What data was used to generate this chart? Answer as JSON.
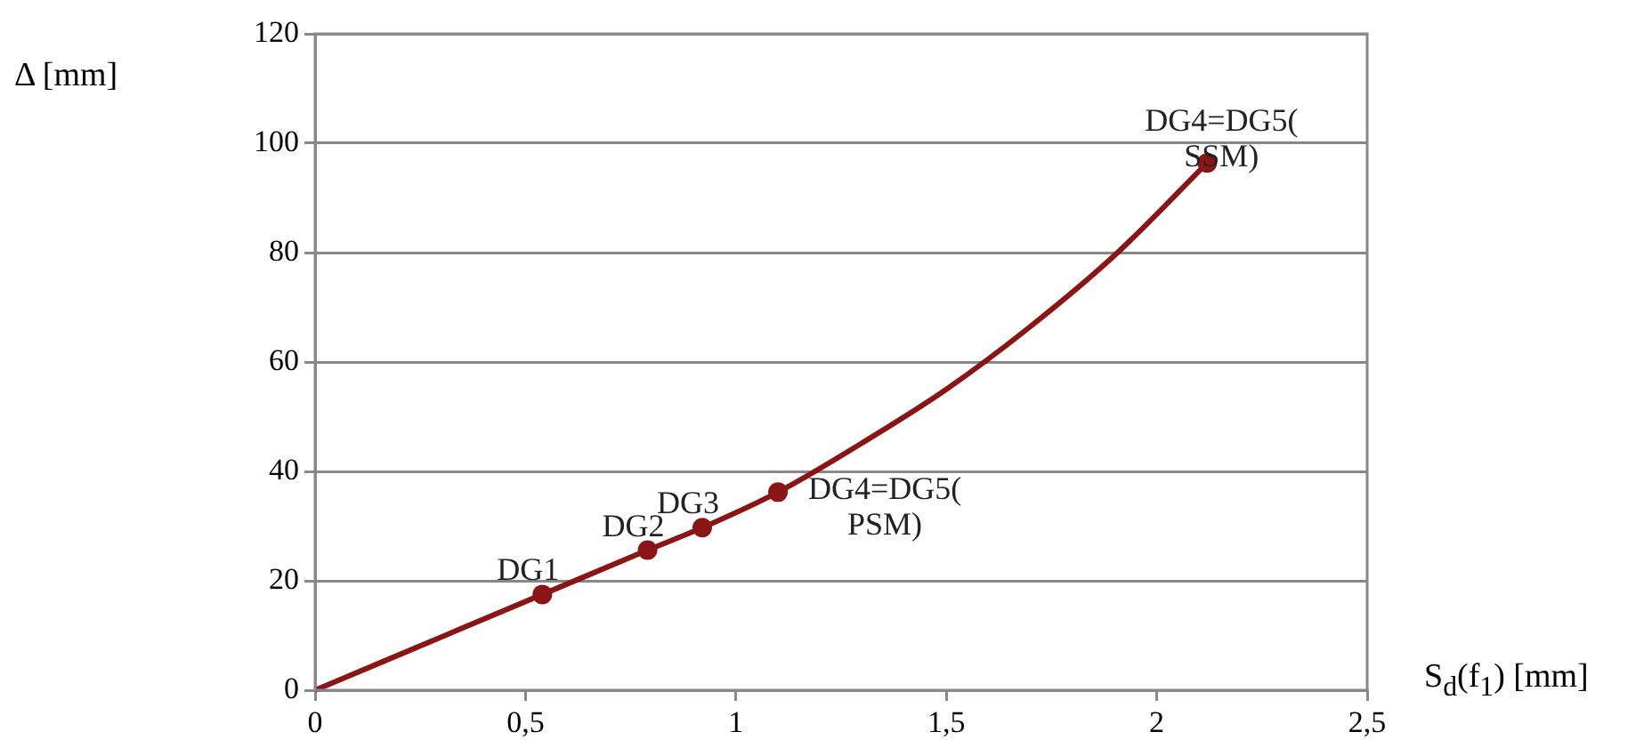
{
  "chart_data": {
    "type": "line",
    "xlabel": "S$_{d}$(f$_{1}$) [mm]",
    "ylabel": "Δ [mm]",
    "series": [
      {
        "type": "line",
        "color": "#8b1414",
        "marker": "none",
        "x": [
          0,
          0.54,
          0.79,
          0.92,
          1.1,
          1.3,
          1.5,
          1.7,
          1.9,
          2.12
        ],
        "values": [
          0,
          17.5,
          25.6,
          29.7,
          36.2,
          45.2,
          55,
          66.5,
          79.5,
          96.4
        ]
      },
      {
        "type": "scatter",
        "color": "#8b1414",
        "marker": "circle",
        "x": [
          0.54,
          0.79,
          0.92,
          1.1,
          2.12
        ],
        "values": [
          17.5,
          25.6,
          29.7,
          36.2,
          96.4
        ]
      }
    ],
    "annotations": [
      {
        "text": "DG1",
        "x": 0.54,
        "y": 17.5
      },
      {
        "text": "DG2",
        "x": 0.79,
        "y": 25.6
      },
      {
        "text": "DG3",
        "x": 0.92,
        "y": 29.7
      },
      {
        "text": "DG4=DG5(PSM)",
        "x": 1.1,
        "y": 36.2
      },
      {
        "text": "DG4=DG5(SSM)",
        "x": 2.12,
        "y": 96.4
      }
    ],
    "xlim": [
      0,
      2.5
    ],
    "xticks": [
      0,
      {
        "value": 0.5,
        "label": "0,5"
      },
      1,
      {
        "value": 1.5,
        "label": "1,5"
      },
      2,
      {
        "value": 2.5,
        "label": "2,5"
      }
    ],
    "ylim": [
      0,
      120
    ],
    "yticks": [
      0,
      20,
      40,
      60,
      80,
      100,
      120
    ],
    "grid": "y",
    "legend": false
  }
}
